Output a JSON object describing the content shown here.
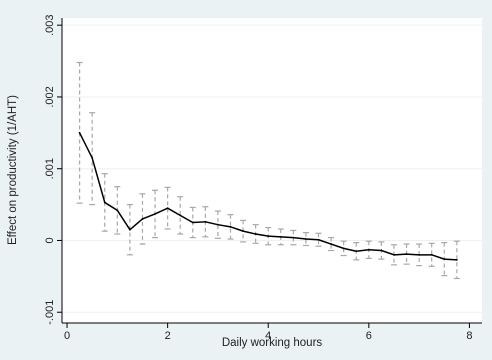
{
  "chart_data": {
    "type": "line",
    "xlabel": "Daily working hours",
    "ylabel": "Effect on productivity (1/AHT)",
    "xlim": [
      -0.1,
      8.25
    ],
    "ylim": [
      -0.00115,
      0.0031
    ],
    "x_ticks": [
      0,
      2,
      4,
      6,
      8
    ],
    "x_tick_labels": [
      "0",
      "2",
      "4",
      "6",
      "8"
    ],
    "y_ticks": [
      -0.001,
      0,
      0.001,
      0.002,
      0.003
    ],
    "y_tick_labels": [
      "-.001",
      "0",
      ".001",
      ".002",
      ".003"
    ],
    "grid": "horizontal",
    "legend": "none",
    "colors": {
      "line": "#000000",
      "ci": "#a8a8a8",
      "grid": "#eaf2f3",
      "plot_bg": "#ffffff"
    },
    "series": [
      {
        "x": [
          0.25,
          0.5,
          0.75,
          1.0,
          1.25,
          1.5,
          1.75,
          2.0,
          2.25,
          2.5,
          2.75,
          3.0,
          3.25,
          3.5,
          3.75,
          4.0,
          4.25,
          4.5,
          4.75,
          5.0,
          5.25,
          5.5,
          5.75,
          6.0,
          6.25,
          6.5,
          6.75,
          7.0,
          7.25,
          7.5,
          7.75
        ],
        "y": [
          0.0015,
          0.00115,
          0.00053,
          0.00042,
          0.00015,
          0.0003,
          0.00037,
          0.00045,
          0.00035,
          0.00025,
          0.00026,
          0.00022,
          0.00019,
          0.00013,
          9e-05,
          6e-05,
          5e-05,
          4e-05,
          2e-05,
          1e-05,
          -5e-05,
          -0.00011,
          -0.00015,
          -0.00013,
          -0.00014,
          -0.0002,
          -0.00019,
          -0.0002,
          -0.0002,
          -0.00026,
          -0.00027
        ],
        "ci_low": [
          0.00052,
          0.0005,
          0.00013,
          9e-05,
          -0.0002,
          -5e-05,
          4e-05,
          0.00016,
          9e-05,
          4e-05,
          5e-05,
          3e-05,
          2e-05,
          -2e-05,
          -4e-05,
          -6e-05,
          -6e-05,
          -6e-05,
          -7e-05,
          -8e-05,
          -0.00014,
          -0.00021,
          -0.00027,
          -0.00025,
          -0.00026,
          -0.00034,
          -0.00033,
          -0.00035,
          -0.00036,
          -0.00049,
          -0.00053
        ],
        "ci_high": [
          0.00248,
          0.00178,
          0.00093,
          0.00075,
          0.0005,
          0.00065,
          0.0007,
          0.00074,
          0.00061,
          0.00046,
          0.00047,
          0.00041,
          0.00036,
          0.00028,
          0.00022,
          0.00018,
          0.00016,
          0.00014,
          0.00011,
          0.0001,
          4e-05,
          -1e-05,
          -3e-05,
          -1e-05,
          -2e-05,
          -6e-05,
          -5e-05,
          -5e-05,
          -4e-05,
          -3e-05,
          -1e-05
        ]
      }
    ]
  }
}
